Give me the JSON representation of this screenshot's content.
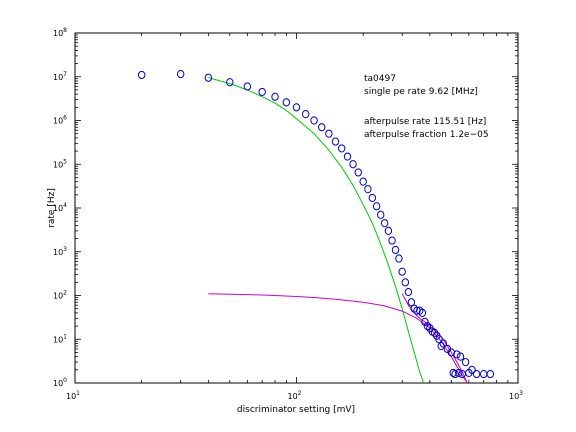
{
  "chart_data": {
    "type": "scatter",
    "xscale": "log",
    "yscale": "log",
    "xlim": [
      10,
      1000
    ],
    "ylim": [
      1,
      100000000
    ],
    "xlabel": "discriminator setting [mV]",
    "ylabel": "rate [Hz]",
    "x_ticks": [
      {
        "value": 10,
        "base": "10",
        "exp": "1"
      },
      {
        "value": 100,
        "base": "10",
        "exp": "2"
      },
      {
        "value": 1000,
        "base": "10",
        "exp": "3"
      }
    ],
    "y_ticks": [
      {
        "value": 1,
        "base": "10",
        "exp": "0"
      },
      {
        "value": 10,
        "base": "10",
        "exp": "1"
      },
      {
        "value": 100,
        "base": "10",
        "exp": "2"
      },
      {
        "value": 1000,
        "base": "10",
        "exp": "3"
      },
      {
        "value": 10000,
        "base": "10",
        "exp": "4"
      },
      {
        "value": 100000,
        "base": "10",
        "exp": "5"
      },
      {
        "value": 1000000,
        "base": "10",
        "exp": "6"
      },
      {
        "value": 10000000,
        "base": "10",
        "exp": "7"
      },
      {
        "value": 100000000,
        "base": "10",
        "exp": "8"
      }
    ],
    "annotations": [
      "ta0497",
      "single pe rate 9.62 [MHz]",
      "afterpulse rate 115.51 [Hz]",
      "afterpulse fraction 1.2e−05"
    ],
    "colors": {
      "points": "#0000cc",
      "fit_single_pe": "#00cc00",
      "fit_afterpulse": "#cc00cc"
    },
    "series": [
      {
        "kind": "points",
        "x": [
          20,
          30,
          40,
          50,
          60,
          70,
          80,
          90,
          100,
          110,
          120,
          130,
          140,
          150,
          160,
          170,
          180,
          190,
          200,
          210,
          220,
          230,
          240,
          250,
          260,
          270,
          280,
          290,
          300,
          310,
          320,
          330,
          340,
          350,
          360,
          370,
          380,
          390,
          400,
          410,
          420,
          430,
          440,
          450,
          460,
          480,
          500,
          510,
          520,
          530,
          540,
          550,
          560,
          580,
          600,
          620,
          650,
          700,
          750
        ],
        "y": [
          11000000,
          11500000,
          9500000,
          7500000,
          6000000,
          4500000,
          3500000,
          2600000,
          2000000,
          1400000,
          1000000,
          700000,
          500000,
          330000,
          230000,
          150000,
          100000,
          65000,
          40000,
          27000,
          17000,
          11000,
          7000,
          4500,
          3000,
          1800,
          1100,
          700,
          350,
          200,
          120,
          70,
          50,
          45,
          45,
          40,
          25,
          20,
          18,
          15,
          14,
          12,
          10,
          7,
          8,
          6,
          5,
          1.7,
          1.6,
          4.5,
          1.7,
          4,
          1.6,
          3,
          1.7,
          2,
          1.6,
          1.6,
          1.6
        ]
      },
      {
        "kind": "fit",
        "x": [
          40,
          50,
          60,
          70,
          80,
          90,
          100,
          120,
          140,
          160,
          180,
          200,
          220,
          240,
          260,
          280,
          300,
          320,
          340,
          360,
          375
        ],
        "y": [
          9500000,
          7000000,
          5000000,
          3500000,
          2500000,
          1700000,
          1100000,
          500000,
          210000,
          85000,
          33000,
          12000,
          4500,
          1500,
          500,
          160,
          50,
          15,
          5,
          1.8,
          1
        ]
      },
      {
        "kind": "fit",
        "x": [
          40,
          60,
          80,
          100,
          120,
          150,
          200,
          250,
          300,
          350,
          400,
          450,
          500,
          550,
          590
        ],
        "y": [
          110,
          105,
          100,
          95,
          90,
          82,
          70,
          58,
          44,
          30,
          18,
          9,
          4,
          1.7,
          1
        ]
      },
      {
        "kind": "fit",
        "x": [
          300,
          320,
          340,
          360,
          380,
          400,
          420,
          440,
          460,
          480,
          500,
          530,
          560,
          590
        ],
        "y": [
          110,
          60,
          40,
          30,
          25,
          20,
          16,
          13,
          10,
          7,
          5,
          3,
          1.8,
          1
        ]
      }
    ]
  }
}
